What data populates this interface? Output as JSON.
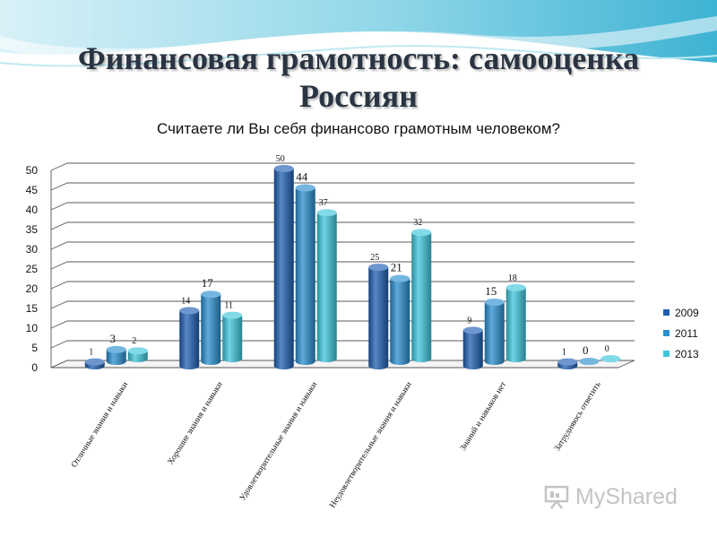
{
  "slide": {
    "title": "Финансовая грамотность: самооценка Россиян",
    "question": "Считаете ли Вы себя финансово грамотным человеком?"
  },
  "chart_data": {
    "type": "bar",
    "style": "3d-cylinder",
    "title": "Считаете ли Вы себя финансово грамотным человеком?",
    "categories": [
      "Отличные знания и навыки",
      "Хорошие знания и навыки",
      "Удовлетворительные знания и навыки",
      "Неудовлетворительные знания и навыки",
      "Знаний и навыков нет",
      "Затрудняюсь ответить"
    ],
    "series": [
      {
        "name": "2009",
        "color": "#1f5fb3",
        "values": [
          1,
          14,
          50,
          25,
          9,
          1
        ]
      },
      {
        "name": "2011",
        "color": "#2a8fd0",
        "values": [
          3,
          17,
          44,
          21,
          15,
          0
        ]
      },
      {
        "name": "2013",
        "color": "#3fc6dc",
        "values": [
          2,
          11,
          37,
          32,
          18,
          0
        ]
      }
    ],
    "yticks": [
      "0",
      "5",
      "10",
      "15",
      "20",
      "25",
      "30",
      "35",
      "40",
      "45",
      "50"
    ],
    "ylim": [
      0,
      50
    ],
    "grid": true,
    "legend_position": "right"
  },
  "watermark": {
    "text": "MyShared"
  },
  "colors": {
    "title": "#2a3442",
    "wave": "#5fc3dd"
  }
}
